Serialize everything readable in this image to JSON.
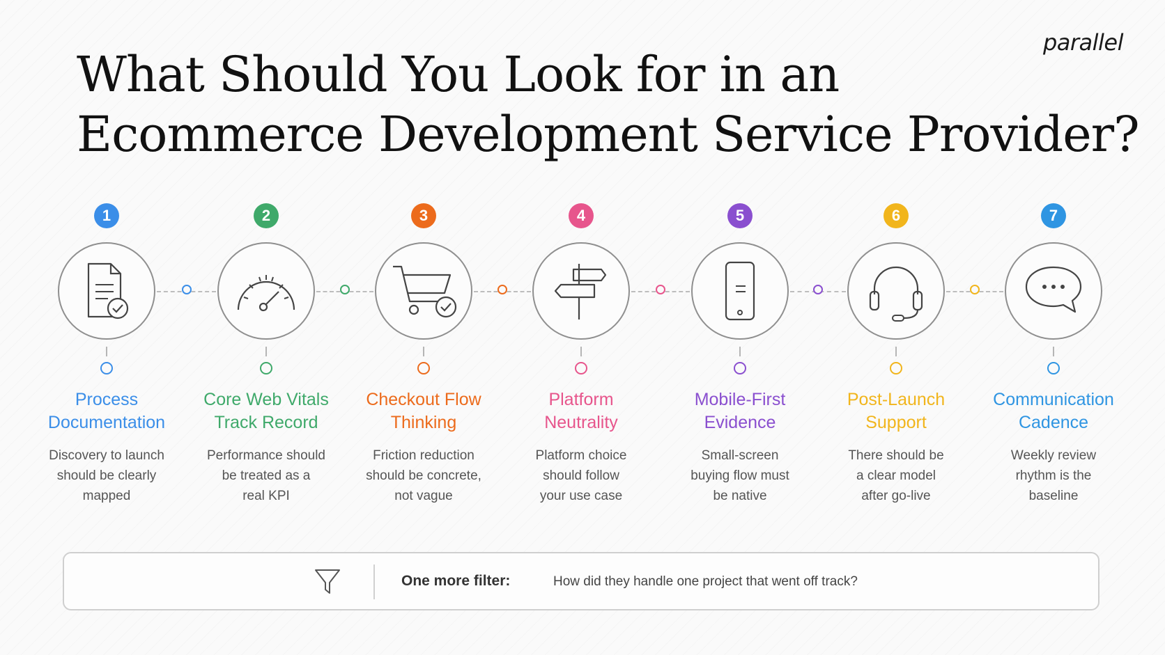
{
  "brand": {
    "logo": "parallel"
  },
  "header": {
    "title_line1": "What Should You Look for in an",
    "title_line2": "Ecommerce Development Service Provider?"
  },
  "steps": [
    {
      "number": "1",
      "label_line1": "Process",
      "label_line2": "Documentation",
      "desc_lines": [
        "Discovery to launch",
        "should be clearly",
        "mapped"
      ],
      "color": "#3b8ee8",
      "icon": "document-check-icon"
    },
    {
      "number": "2",
      "label_line1": "Core Web Vitals",
      "label_line2": "Track Record",
      "desc_lines": [
        "Performance should",
        "be treated as a",
        "real KPI"
      ],
      "color": "#3fa96a",
      "icon": "speedometer-icon"
    },
    {
      "number": "3",
      "label_line1": "Checkout Flow",
      "label_line2": "Thinking",
      "desc_lines": [
        "Friction reduction",
        "should be concrete,",
        "not vague"
      ],
      "color": "#ec6b1c",
      "icon": "cart-check-icon"
    },
    {
      "number": "4",
      "label_line1": "Platform",
      "label_line2": "Neutrality",
      "desc_lines": [
        "Platform choice",
        "should follow",
        "your use case"
      ],
      "color": "#e7558c",
      "icon": "signpost-icon"
    },
    {
      "number": "5",
      "label_line1": "Mobile-First",
      "label_line2": "Evidence",
      "desc_lines": [
        "Small-screen",
        "buying flow must",
        "be native"
      ],
      "color": "#8a4fcf",
      "icon": "smartphone-icon"
    },
    {
      "number": "6",
      "label_line1": "Post-Launch",
      "label_line2": "Support",
      "desc_lines": [
        "There should be",
        "a clear model",
        "after go-live"
      ],
      "color": "#f1b51c",
      "icon": "headset-icon"
    },
    {
      "number": "7",
      "label_line1": "Communication",
      "label_line2": "Cadence",
      "desc_lines": [
        "Weekly review",
        "rhythm is the",
        "baseline"
      ],
      "color": "#2f95e2",
      "icon": "chat-bubble-icon"
    }
  ],
  "filter": {
    "label": "One more filter:",
    "text": "How did they handle one project that went off track?",
    "icon": "funnel-icon"
  }
}
